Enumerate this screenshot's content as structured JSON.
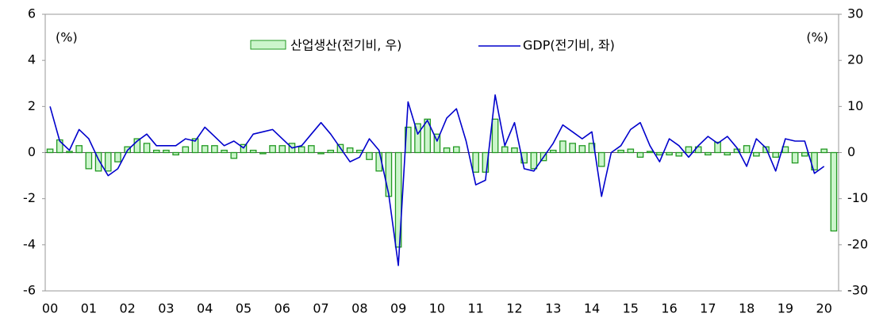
{
  "chart_data": {
    "type": "bar-line",
    "y_label": "(%)",
    "y2_label": "(%)",
    "categories": [
      "00",
      null,
      null,
      null,
      "01",
      null,
      null,
      null,
      "02",
      null,
      null,
      null,
      "03",
      null,
      null,
      null,
      "04",
      null,
      null,
      null,
      "05",
      null,
      null,
      null,
      "06",
      null,
      null,
      null,
      "07",
      null,
      null,
      null,
      "08",
      null,
      null,
      null,
      "09",
      null,
      null,
      null,
      "10",
      null,
      null,
      null,
      "11",
      null,
      null,
      null,
      "12",
      null,
      null,
      null,
      "13",
      null,
      null,
      null,
      "14",
      null,
      null,
      null,
      "15",
      null,
      null,
      null,
      "16",
      null,
      null,
      null,
      "17",
      null,
      null,
      null,
      "18",
      null,
      null,
      null,
      "19",
      null,
      null,
      null,
      "20",
      null
    ],
    "series": [
      {
        "name": "산업생산(전기비, 우)",
        "type": "bar",
        "axis": "y2",
        "color": "#ccf5cc",
        "edge": "#229922",
        "values": [
          0.75,
          2.75,
          0.25,
          1.5,
          -3.5,
          -4,
          -4,
          -2,
          1.25,
          3,
          2,
          0.5,
          0.5,
          -0.5,
          1.25,
          3,
          1.5,
          1.5,
          0.5,
          -1.25,
          1.75,
          0.5,
          -0.25,
          1.5,
          1.5,
          2,
          1.25,
          1.5,
          -0.25,
          0.5,
          1.75,
          1,
          0.5,
          -1.5,
          -4,
          -9.5,
          -20.5,
          5.5,
          6.25,
          7.25,
          4,
          1,
          1.25,
          0,
          -4.25,
          -4.25,
          7.25,
          1.25,
          1,
          -2.25,
          -3.5,
          -1.75,
          0.5,
          2.5,
          2,
          1.5,
          2,
          -3,
          0,
          0.5,
          0.75,
          -1,
          0.25,
          -0.5,
          -0.5,
          -0.75,
          1.25,
          1.25,
          -0.5,
          2.25,
          -0.5,
          0.75,
          1.5,
          -0.75,
          1.25,
          -1,
          1.25,
          -2.25,
          -0.75,
          -3.75,
          0.75,
          -17
        ]
      },
      {
        "name": "GDP(전기비, 좌)",
        "type": "line",
        "axis": "y",
        "color": "#0000cc",
        "values": [
          2.0,
          0.5,
          0.1,
          1.0,
          0.6,
          -0.3,
          -1.0,
          -0.7,
          0.1,
          0.5,
          0.8,
          0.3,
          0.3,
          0.3,
          0.6,
          0.5,
          1.1,
          0.7,
          0.3,
          0.5,
          0.2,
          0.8,
          0.9,
          1.0,
          0.6,
          0.2,
          0.3,
          0.8,
          1.3,
          0.8,
          0.2,
          -0.4,
          -0.2,
          0.6,
          0.1,
          -1.8,
          -4.9,
          2.2,
          0.8,
          1.4,
          0.5,
          1.5,
          1.9,
          0.5,
          -1.4,
          -1.2,
          2.5,
          0.3,
          1.3,
          -0.7,
          -0.8,
          -0.2,
          0.4,
          1.2,
          0.9,
          0.6,
          0.9,
          -1.9,
          0.0,
          0.3,
          1.0,
          1.3,
          0.3,
          -0.4,
          0.6,
          0.3,
          -0.2,
          0.3,
          0.7,
          0.4,
          0.7,
          0.2,
          -0.6,
          0.6,
          0.2,
          -0.8,
          0.6,
          0.5,
          0.5,
          -0.9,
          -0.6,
          null
        ]
      }
    ],
    "ylim": [
      -6,
      6
    ],
    "yticks": [
      -6,
      -4,
      -2,
      0,
      2,
      4,
      6
    ],
    "y2lim": [
      -30,
      30
    ],
    "y2ticks": [
      -30,
      -20,
      -10,
      0,
      10,
      20,
      30
    ]
  }
}
